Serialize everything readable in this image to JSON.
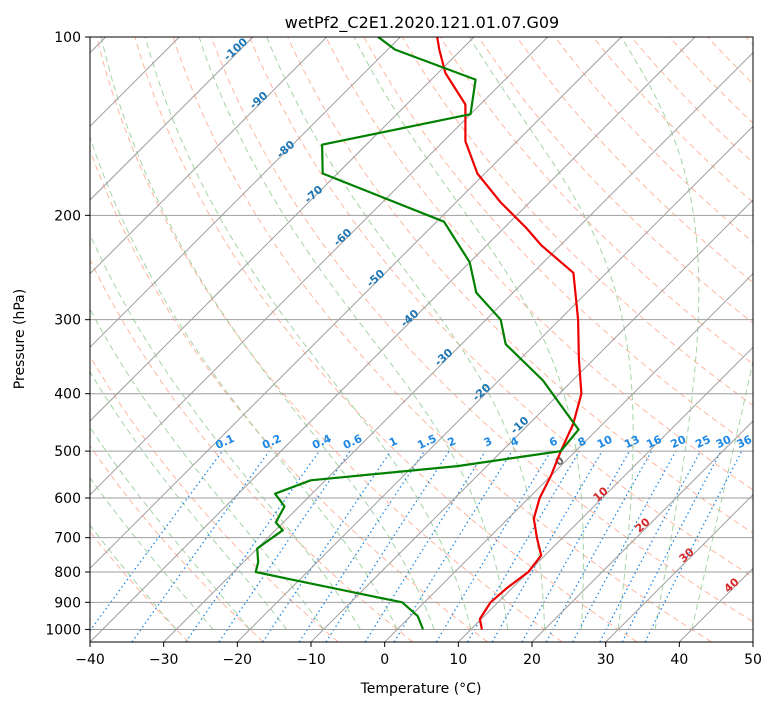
{
  "chart_data": {
    "type": "line",
    "subtype": "skew-T log-P diagram",
    "title": "wetPf2_C2E1.2020.121.01.07.G09",
    "xlabel": "Temperature (°C)",
    "ylabel": "Pressure (hPa)",
    "xlim": [
      -40,
      50
    ],
    "ylim": [
      1050,
      100
    ],
    "y_scale": "log",
    "x_ticks": [
      -40,
      -30,
      -20,
      -10,
      0,
      10,
      20,
      30,
      40,
      50
    ],
    "x_tick_labels": [
      "−40",
      "−30",
      "−20",
      "−10",
      "0",
      "10",
      "20",
      "30",
      "40",
      "50"
    ],
    "y_ticks": [
      100,
      200,
      300,
      400,
      500,
      600,
      700,
      800,
      900,
      1000
    ],
    "y_tick_labels": [
      "100",
      "200",
      "300",
      "400",
      "500",
      "600",
      "700",
      "800",
      "900",
      "1000"
    ],
    "grid": true,
    "series": [
      {
        "role": "temperature",
        "color": "#ee0000",
        "points": [
          [
            11.5,
            1000
          ],
          [
            9.8,
            960
          ],
          [
            9.0,
            900
          ],
          [
            9.3,
            850
          ],
          [
            10.0,
            800
          ],
          [
            9.5,
            750
          ],
          [
            6.5,
            700
          ],
          [
            3.5,
            650
          ],
          [
            1.5,
            600
          ],
          [
            0.0,
            550
          ],
          [
            -2.0,
            500
          ],
          [
            -4.0,
            450
          ],
          [
            -7.0,
            400
          ],
          [
            -12.0,
            350
          ],
          [
            -17.5,
            300
          ],
          [
            -24.5,
            250
          ],
          [
            -32.5,
            225
          ],
          [
            -37.0,
            210
          ],
          [
            -44.0,
            190
          ],
          [
            -51.0,
            170
          ],
          [
            -57.0,
            150
          ],
          [
            -62.0,
            130
          ],
          [
            -69.0,
            115
          ],
          [
            -73.0,
            105
          ],
          [
            -75.0,
            100
          ]
        ]
      },
      {
        "role": "dewpoint",
        "color": "#008000",
        "points": [
          [
            3.5,
            1000
          ],
          [
            1.0,
            950
          ],
          [
            -3.0,
            900
          ],
          [
            -10.0,
            870
          ],
          [
            -22.0,
            820
          ],
          [
            -27.0,
            800
          ],
          [
            -28.0,
            770
          ],
          [
            -30.0,
            730
          ],
          [
            -29.0,
            680
          ],
          [
            -31.0,
            660
          ],
          [
            -32.0,
            620
          ],
          [
            -35.0,
            590
          ],
          [
            -32.0,
            560
          ],
          [
            -14.0,
            530
          ],
          [
            -2.0,
            500
          ],
          [
            -2.5,
            460
          ],
          [
            -8.0,
            420
          ],
          [
            -14.0,
            380
          ],
          [
            -24.0,
            330
          ],
          [
            -28.0,
            300
          ],
          [
            -35.0,
            270
          ],
          [
            -40.0,
            240
          ],
          [
            -49.0,
            205
          ],
          [
            -72.0,
            170
          ],
          [
            -76.0,
            152
          ],
          [
            -60.0,
            135
          ],
          [
            -64.0,
            118
          ],
          [
            -79.0,
            105
          ],
          [
            -83.0,
            100
          ]
        ]
      }
    ],
    "dry_adiabat_labels": [
      "-100",
      "-90",
      "-80",
      "-70",
      "-60",
      "-50",
      "-40",
      "-30",
      "-20",
      "-10",
      "0",
      "10",
      "20",
      "30",
      "40"
    ],
    "mixing_ratio_labels": [
      "0.1",
      "0.2",
      "0.4",
      "0.6",
      "1",
      "1.5",
      "2",
      "3",
      "4",
      "6",
      "8",
      "10",
      "13",
      "16",
      "20",
      "25",
      "30",
      "36"
    ]
  },
  "colors": {
    "dry_adiabat": "#ff9f80",
    "moist_adiabat": "#8fc88f",
    "mixing_ratio": "#1e88e5",
    "isotherm_grid": "#9e9e9e",
    "label_blue": "#1f77b4",
    "label_red": "#d62728",
    "label_gray": "#666666"
  }
}
